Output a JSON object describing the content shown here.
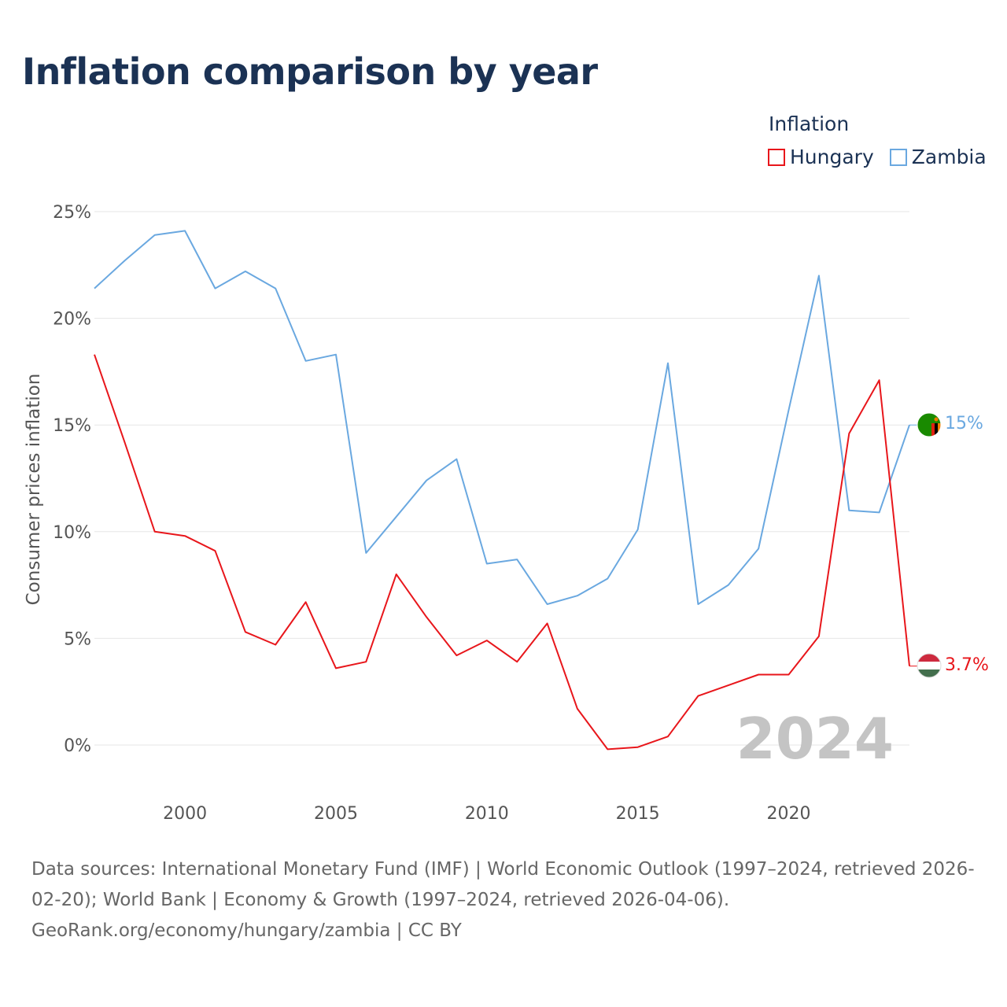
{
  "title": "Inflation comparison by year",
  "legend": {
    "title": "Inflation",
    "items": [
      {
        "name": "Hungary",
        "color": "#e8161b"
      },
      {
        "name": "Zambia",
        "color": "#6aa8e0"
      }
    ]
  },
  "source": {
    "line1": "Data sources: International Monetary Fund (IMF) | World Economic Outlook (1997–2024, retrieved 2026-02-20); World Bank | Economy & Growth (1997–2024, retrieved 2026-04-06).",
    "line2": "GeoRank.org/economy/hungary/zambia | CC BY"
  },
  "chart_data": {
    "type": "line",
    "title": "Inflation comparison by year",
    "xlabel": "",
    "ylabel": "Consumer prices inflation",
    "x": [
      1997,
      1998,
      1999,
      2000,
      2001,
      2002,
      2003,
      2004,
      2005,
      2006,
      2007,
      2008,
      2009,
      2010,
      2011,
      2012,
      2013,
      2014,
      2015,
      2016,
      2017,
      2018,
      2019,
      2020,
      2021,
      2022,
      2023,
      2024
    ],
    "xlim": [
      1997,
      2024
    ],
    "ylim": [
      -2,
      25
    ],
    "yticks": [
      0,
      5,
      10,
      15,
      20,
      25
    ],
    "ytick_labels": [
      "0%",
      "5%",
      "10%",
      "15%",
      "20%",
      "25%"
    ],
    "xticks": [
      2000,
      2005,
      2010,
      2015,
      2020
    ],
    "xtick_labels": [
      "2000",
      "2005",
      "2010",
      "2015",
      "2020"
    ],
    "grid": true,
    "legend_position": "top-right",
    "current_year_label": "2024",
    "series": [
      {
        "name": "Zambia",
        "color": "#6aa8e0",
        "end_label": "15%",
        "values": [
          21.4,
          22.7,
          23.9,
          24.1,
          21.4,
          22.2,
          21.4,
          18.0,
          18.3,
          9.0,
          10.7,
          12.4,
          13.4,
          8.5,
          8.7,
          6.6,
          7.0,
          7.8,
          10.1,
          17.9,
          6.6,
          7.5,
          9.2,
          15.7,
          22.0,
          11.0,
          10.9,
          15.0
        ]
      },
      {
        "name": "Hungary",
        "color": "#e8161b",
        "end_label": "3.7%",
        "values": [
          18.3,
          14.2,
          10.0,
          9.8,
          9.1,
          5.3,
          4.7,
          6.7,
          3.6,
          3.9,
          8.0,
          6.0,
          4.2,
          4.9,
          3.9,
          5.7,
          1.7,
          -0.2,
          -0.1,
          0.4,
          2.3,
          2.8,
          3.3,
          3.3,
          5.1,
          14.6,
          17.1,
          3.7
        ]
      }
    ]
  }
}
